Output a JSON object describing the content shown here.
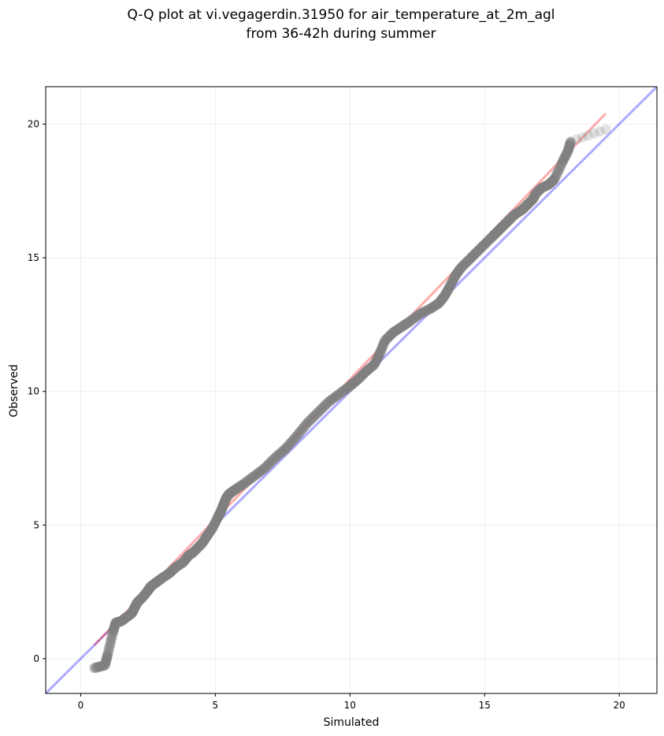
{
  "chart_data": {
    "type": "scatter",
    "title": "Q-Q plot at vi.vegagerdin.31950 for air_temperature_at_2m_agl",
    "subtitle": "from 36-42h during summer",
    "xlabel": "Simulated",
    "ylabel": "Observed",
    "xlim": [
      -1.3,
      21.4
    ],
    "ylim": [
      -1.3,
      21.4
    ],
    "xticks": [
      0,
      5,
      10,
      15,
      20
    ],
    "yticks": [
      0,
      5,
      10,
      15,
      20
    ],
    "grid": true,
    "identity_line": {
      "color": "#0000ff",
      "from": [
        -1.3,
        -1.3
      ],
      "to": [
        21.4,
        21.4
      ]
    },
    "fit_line": {
      "color": "#ff0000",
      "from": [
        0.5,
        0.5
      ],
      "to": [
        19.5,
        20.4
      ]
    },
    "series": [
      {
        "x": [
          0.5,
          0.9,
          1.0,
          1.2,
          1.3,
          1.5,
          1.7,
          1.9,
          2.0,
          2.1,
          2.3,
          2.5,
          2.6,
          2.8,
          3.0,
          3.3,
          3.5,
          3.8,
          4.0,
          4.2,
          4.5,
          4.7,
          4.9,
          5.1,
          5.2,
          5.3,
          5.4,
          5.5,
          5.7,
          6.0,
          6.4,
          6.8,
          7.2,
          7.6,
          8.0,
          8.4,
          8.8,
          9.2,
          9.6,
          10.0,
          10.3,
          10.6,
          10.9,
          11.1,
          11.3,
          11.6,
          11.9,
          12.2,
          12.6,
          13.0,
          13.3,
          13.5,
          13.7,
          13.9,
          14.1,
          14.4,
          14.7,
          15.0,
          15.3,
          15.5,
          15.7,
          15.9,
          16.1,
          16.4,
          16.6,
          16.8,
          16.9,
          17.1,
          17.4,
          17.6,
          17.9,
          18.1,
          18.2,
          19.5
        ],
        "y": [
          -0.35,
          -0.25,
          0.15,
          1.0,
          1.35,
          1.4,
          1.55,
          1.7,
          1.9,
          2.1,
          2.3,
          2.55,
          2.7,
          2.85,
          3.0,
          3.2,
          3.4,
          3.6,
          3.85,
          4.0,
          4.3,
          4.6,
          4.9,
          5.3,
          5.5,
          5.75,
          6.0,
          6.15,
          6.3,
          6.5,
          6.8,
          7.1,
          7.5,
          7.85,
          8.3,
          8.8,
          9.2,
          9.6,
          9.9,
          10.2,
          10.45,
          10.75,
          11.0,
          11.4,
          11.9,
          12.2,
          12.4,
          12.6,
          12.9,
          13.1,
          13.3,
          13.55,
          13.9,
          14.3,
          14.6,
          14.9,
          15.2,
          15.5,
          15.8,
          16.0,
          16.2,
          16.4,
          16.6,
          16.8,
          17.0,
          17.2,
          17.4,
          17.6,
          17.75,
          17.95,
          18.6,
          19.0,
          19.35,
          19.8
        ]
      }
    ]
  }
}
